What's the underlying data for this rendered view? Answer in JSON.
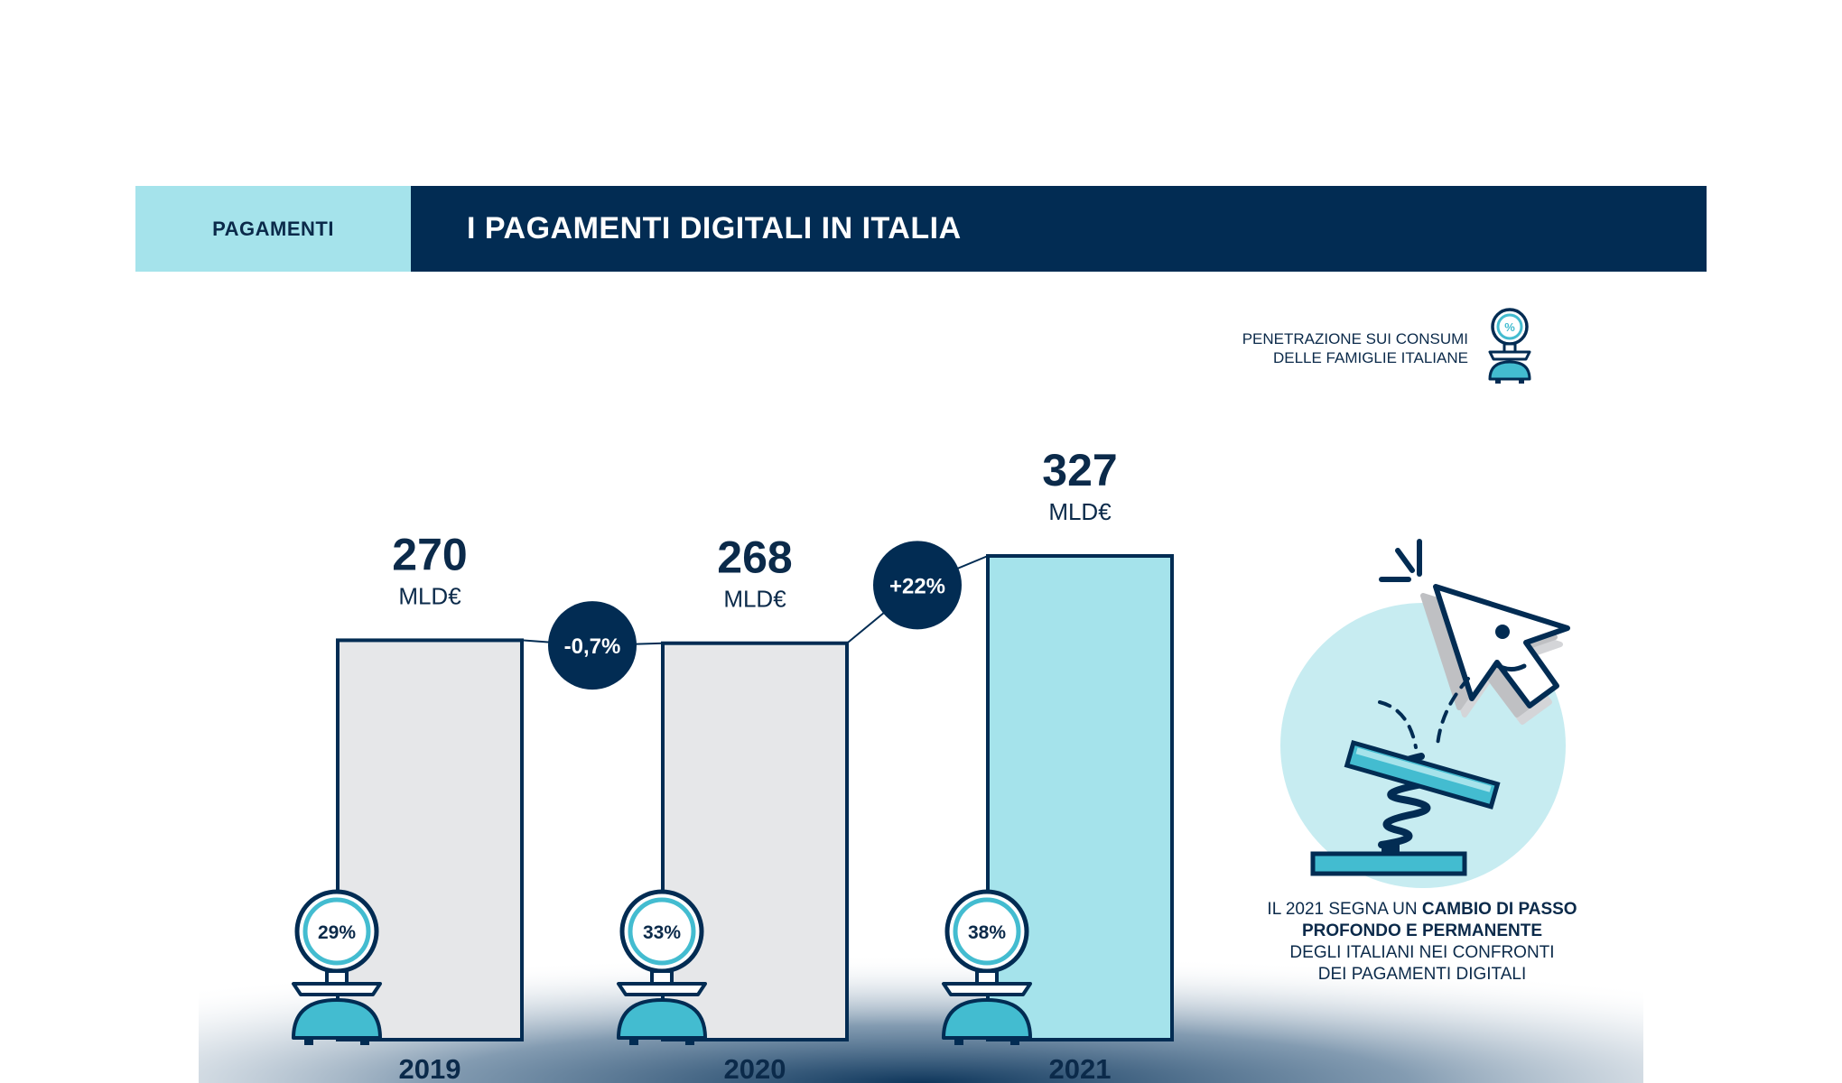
{
  "header": {
    "section_label": "PAGAMENTI",
    "title": "I PAGAMENTI DIGITALI IN ITALIA"
  },
  "legend": {
    "line1": "PENETRAZIONE SUI CONSUMI",
    "line2": "DELLE FAMIGLIE ITALIANE",
    "icon_symbol": "%"
  },
  "chart_data": {
    "type": "bar",
    "categories": [
      "2019",
      "2020",
      "2021"
    ],
    "values": [
      270,
      268,
      327
    ],
    "value_labels": [
      "270",
      "268",
      "327"
    ],
    "unit": "MLD€",
    "penetration": [
      "29%",
      "33%",
      "38%"
    ],
    "changes": [
      "-0,7%",
      "+22%"
    ],
    "ylim": [
      0,
      327
    ],
    "highlight_index": 2,
    "colors": {
      "bar": "#e6e7e9",
      "bar_highlight": "#a5e3eb",
      "outline": "#022c53",
      "change_bubble": "#022c53",
      "gauge": "#43bcd0"
    }
  },
  "side_note": {
    "line1_normal": "IL 2021 SEGNA UN ",
    "line1_bold": "CAMBIO DI PASSO",
    "line2_bold": "PROFONDO E PERMANENTE",
    "line3": "DEGLI ITALIANI NEI CONFRONTI",
    "line4": "DEI PAGAMENTI DIGITALI"
  },
  "colors": {
    "navy": "#022c53",
    "light_blue": "#a5e3eb",
    "gauge_blue": "#43bcd0",
    "circle_bg": "#c7ecf1"
  }
}
